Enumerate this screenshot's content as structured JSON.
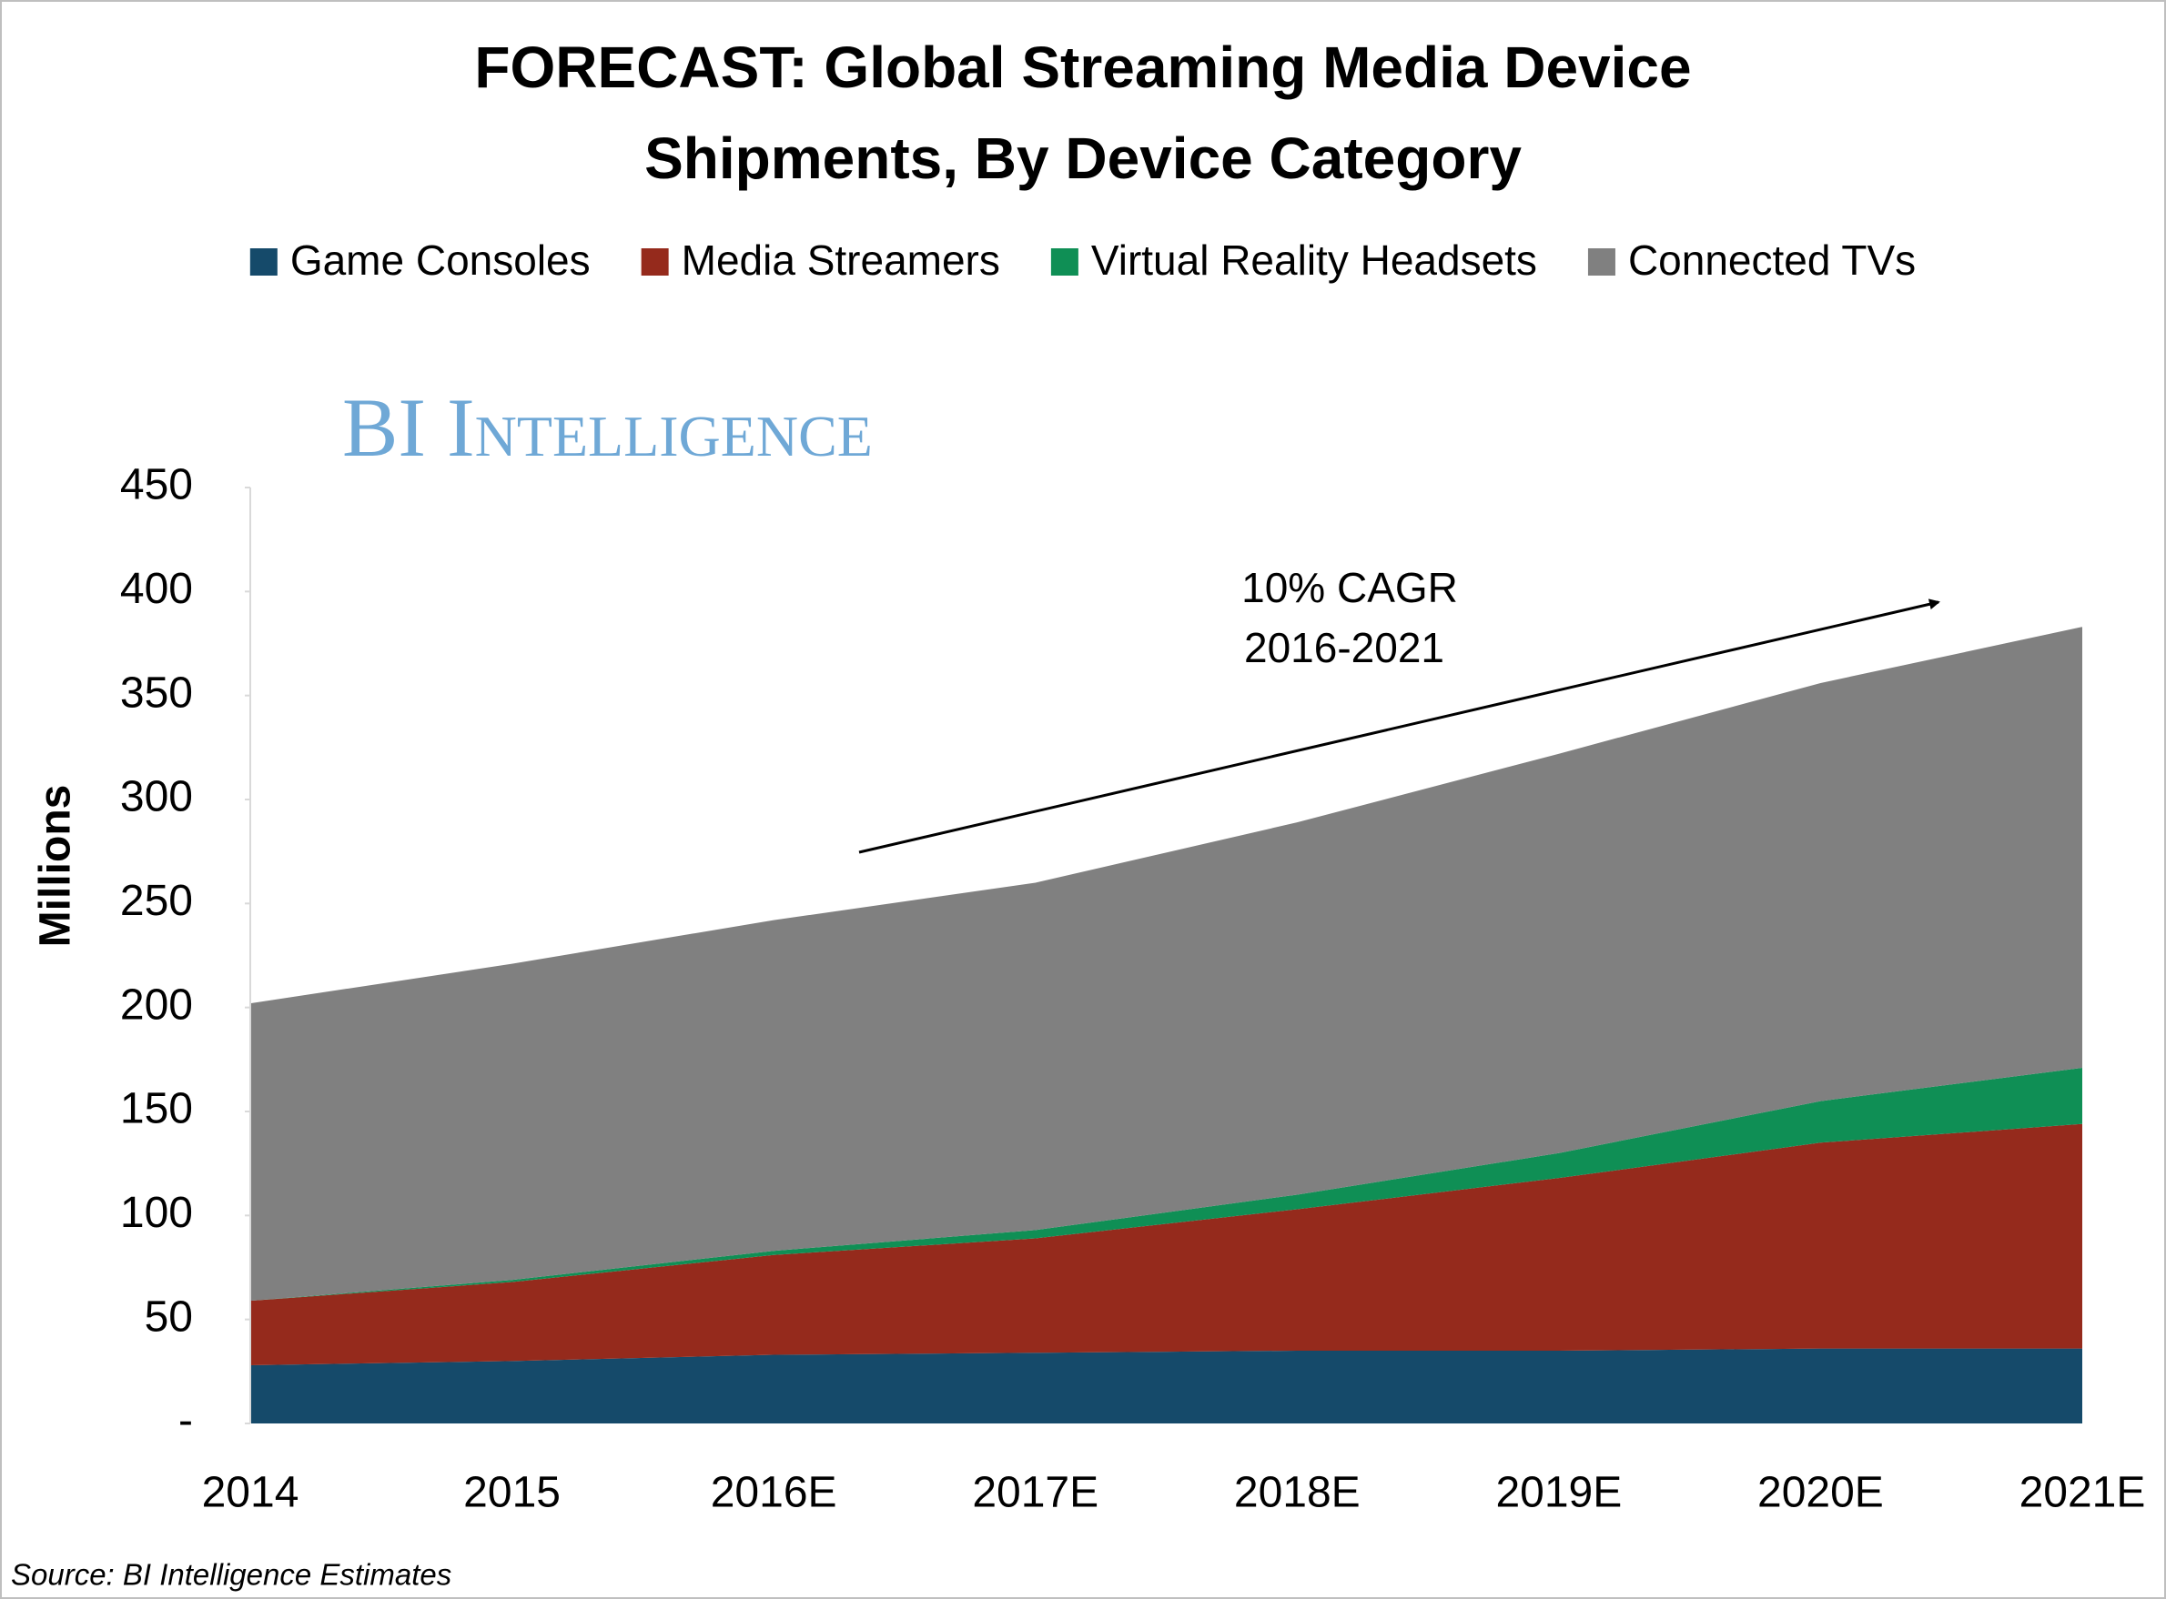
{
  "chart_data": {
    "type": "area",
    "title": [
      "FORECAST: Global Streaming Media Device",
      "Shipments, By Device Category"
    ],
    "watermark": "BI Intelligence",
    "y_label": "Millions",
    "annotation": [
      "10% CAGR",
      "2016-2021"
    ],
    "source": "Source: BI Intelligence Estimates",
    "categories": [
      "2014",
      "2015",
      "2016E",
      "2017E",
      "2018E",
      "2019E",
      "2020E",
      "2021E"
    ],
    "stacked": true,
    "series": [
      {
        "name": "Game Consoles",
        "color": "#154a6a",
        "values": [
          28,
          30,
          33,
          34,
          35,
          35,
          36,
          36
        ]
      },
      {
        "name": "Media Streamers",
        "color": "#952a1c",
        "values": [
          31,
          38,
          48,
          55,
          68,
          83,
          99,
          108
        ]
      },
      {
        "name": "Virtual Reality Headsets",
        "color": "#0f8f55",
        "values": [
          0,
          1,
          2,
          4,
          7,
          12,
          20,
          27
        ]
      },
      {
        "name": "Connected TVs",
        "color": "#808080",
        "values": [
          143,
          152,
          159,
          167,
          179,
          192,
          201,
          212
        ]
      }
    ],
    "ylim": [
      0,
      450
    ],
    "yticks": [
      {
        "value": 0,
        "label": "-"
      },
      50,
      100,
      150,
      200,
      250,
      300,
      350,
      400,
      450
    ],
    "grid": false
  }
}
